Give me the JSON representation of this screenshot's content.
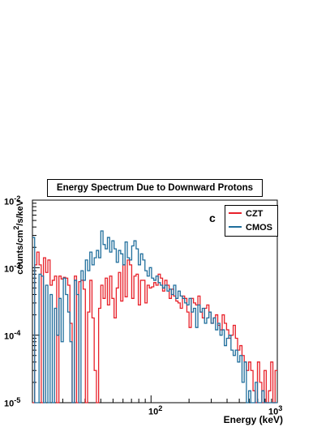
{
  "chart_data": {
    "type": "line",
    "title": "Energy Spectrum Due to Downward Protons",
    "panel_label": "c",
    "xlabel": "Energy (keV)",
    "ylabel_base": "counts/cm",
    "ylabel_sup": "2",
    "ylabel_rest": "/s/keV",
    "x_scale": "log",
    "y_scale": "log",
    "xlim": [
      11.5,
      1000
    ],
    "ylim": [
      1e-05,
      0.01
    ],
    "x_ticks": [
      {
        "base": "10",
        "exp": "2",
        "value": 100
      },
      {
        "base": "10",
        "exp": "3",
        "value": 1000
      }
    ],
    "y_ticks": [
      {
        "base": "10",
        "exp": "-2",
        "value": 0.01
      },
      {
        "base": "10",
        "exp": "-3",
        "value": 0.001
      },
      {
        "base": "10",
        "exp": "-4",
        "value": 0.0001
      },
      {
        "base": "10",
        "exp": "-5",
        "value": 1e-05
      }
    ],
    "legend_position": "top-right",
    "grid": false,
    "series": [
      {
        "name": "CZT",
        "color": "#e8212a",
        "values": [
          1e-05,
          0.0011,
          0.0017,
          0.0011,
          1e-05,
          0.0014,
          0.00085,
          0.0013,
          0.00055,
          0.00065,
          0.00075,
          1e-05,
          0.00075,
          0.00068,
          0.00072,
          0.0007,
          0.00055,
          0.00015,
          1e-05,
          0.00075,
          1e-05,
          0.00062,
          0.00065,
          0.00048,
          1e-05,
          0.00022,
          0.00065,
          0.00018,
          3e-05,
          1e-05,
          0.00025,
          0.00055,
          0.00035,
          0.0007,
          0.00028,
          0.00075,
          0.00035,
          0.00018,
          0.0005,
          0.00085,
          0.00032,
          0.0011,
          0.00037,
          0.0013,
          0.0011,
          0.00035,
          0.00075,
          0.0008,
          0.00028,
          0.00065,
          0.00065,
          0.0003,
          0.00055,
          0.0005,
          0.00052,
          0.0006,
          0.00055,
          0.0008,
          0.0007,
          0.00045,
          0.00065,
          0.00055,
          0.00035,
          0.00048,
          0.00038,
          0.00032,
          0.0003,
          0.00025,
          0.00038,
          0.00035,
          0.00022,
          0.00013,
          0.00035,
          0.0003,
          0.00028,
          0.00038,
          0.00022,
          0.00018,
          0.00025,
          0.00028,
          0.00022,
          0.00015,
          0.00018,
          0.0002,
          0.00014,
          0.00012,
          0.0002,
          0.00015,
          0.00012,
          9e-05,
          0.0001,
          0.00014,
          9e-05,
          6e-05,
          7e-05,
          5e-05,
          4e-05,
          3e-05,
          4e-05,
          3e-05,
          1.5e-05,
          1e-05,
          4e-05,
          2e-05,
          1e-05,
          3e-05,
          1e-05,
          1.5e-05,
          4e-05,
          1e-05,
          3e-05
        ]
      },
      {
        "name": "CMOS",
        "color": "#1f6e9c",
        "values": [
          0.0028,
          1e-05,
          1e-05,
          0.0008,
          0.00075,
          1e-05,
          0.00055,
          1e-05,
          0.0004,
          1e-05,
          0.00025,
          0.0001,
          0.00035,
          8e-05,
          0.0007,
          0.0004,
          0.00022,
          8e-05,
          1e-05,
          0.00065,
          0.0004,
          1e-05,
          0.0009,
          0.00065,
          0.0013,
          0.0009,
          0.0017,
          0.0011,
          0.0014,
          0.0018,
          0.0014,
          0.0035,
          0.0022,
          0.0019,
          0.0028,
          0.0017,
          0.0025,
          0.0019,
          0.0012,
          0.0018,
          0.0016,
          0.0011,
          0.0024,
          0.0014,
          0.0013,
          0.0021,
          0.0025,
          0.0019,
          0.0011,
          0.0016,
          0.0013,
          0.0009,
          0.00075,
          0.001,
          0.0007,
          0.00065,
          0.00075,
          0.0006,
          0.00055,
          0.0005,
          0.00055,
          0.00045,
          0.00048,
          0.0004,
          0.00055,
          0.00035,
          0.00045,
          0.00038,
          0.00035,
          0.0003,
          0.00028,
          0.00035,
          0.00022,
          0.00025,
          0.00013,
          0.00028,
          0.00022,
          0.00025,
          0.00015,
          0.00018,
          0.00022,
          0.00015,
          0.00018,
          0.00012,
          0.00015,
          0.0001,
          0.00012,
          7e-05,
          9e-05,
          0.0001,
          6e-05,
          5e-05,
          6e-05,
          4e-05,
          5e-05,
          2e-05,
          4e-05,
          1e-05,
          1.5e-05,
          1e-05,
          1e-05,
          2e-05,
          1e-05,
          1e-05,
          1.5e-05,
          1e-05,
          1e-05,
          1e-05,
          1e-05,
          1e-05,
          1e-05
        ]
      }
    ]
  },
  "colors": {
    "frame": "#000000",
    "background": "#ffffff"
  }
}
